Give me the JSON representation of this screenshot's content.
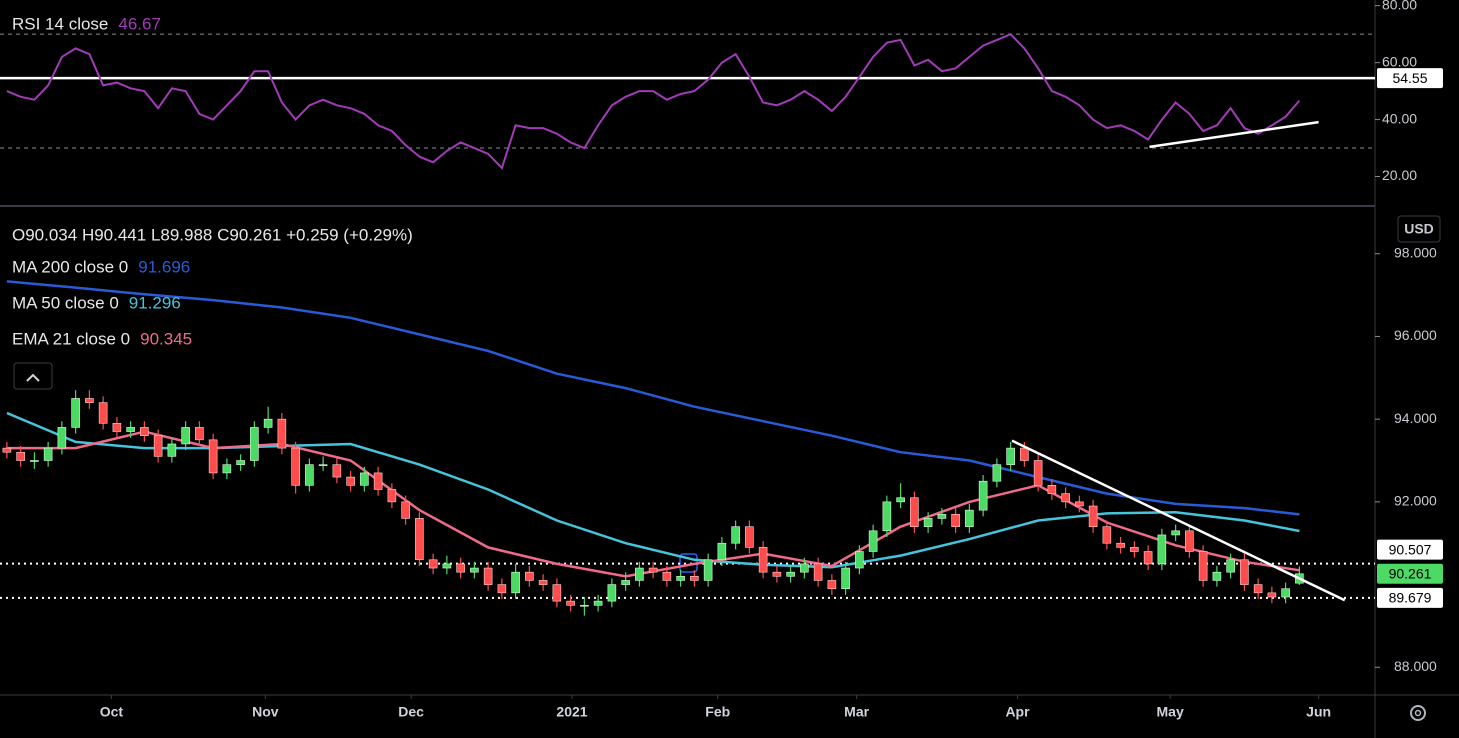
{
  "chart_data": [
    {
      "type": "line",
      "title": "RSI 14 close",
      "xlim": [
        -0.5,
        99.5
      ],
      "ylim": [
        10,
        82
      ],
      "yticks": [
        {
          "value": 20,
          "label": "20.00"
        },
        {
          "value": 40,
          "label": "40.00"
        },
        {
          "value": 60,
          "label": "60.00"
        },
        {
          "value": 80,
          "label": "80.00"
        }
      ],
      "hlines": [
        30,
        70
      ],
      "levels": [
        {
          "value": 54.55,
          "color": "#ffffff"
        }
      ],
      "trendline": {
        "x": [
          83.1,
          95.4
        ],
        "y": [
          30.4,
          39.1
        ],
        "color": "#ffffff"
      },
      "series": [
        {
          "name": "RSI 14 close",
          "color": "#a23bb8",
          "values": [
            50,
            48,
            47,
            52,
            62,
            65,
            63,
            52,
            53,
            51,
            50,
            44,
            51,
            50,
            42,
            40,
            45,
            50,
            57,
            57,
            46,
            40,
            45,
            47,
            45,
            44,
            42,
            38,
            36,
            31,
            27,
            25,
            29,
            32,
            30,
            28,
            23,
            38,
            37,
            37,
            35,
            32,
            30,
            38,
            45,
            48,
            50,
            50,
            47,
            49,
            50,
            54,
            60,
            63,
            55,
            46,
            45,
            47,
            50,
            47,
            43,
            48,
            55,
            62,
            67,
            68,
            59,
            61,
            57,
            58,
            62,
            66,
            68,
            70,
            65,
            58,
            50,
            48,
            45,
            40,
            37,
            38,
            36,
            33,
            40,
            46,
            42,
            36,
            38,
            44,
            37,
            35,
            38,
            41,
            46.67
          ]
        }
      ]
    },
    {
      "type": "candlestick",
      "ohlc_label": "O90.034 H90.441 L89.988 C90.261 +0.259 (+0.29%)",
      "currency": "USD",
      "xlim": [
        -0.5,
        99.5
      ],
      "ylim": [
        87.33,
        99.13
      ],
      "yticks": [
        {
          "value": 88,
          "label": "88.000"
        },
        {
          "value": 92,
          "label": "92.000"
        },
        {
          "value": 94,
          "label": "94.000"
        },
        {
          "value": 96,
          "label": "96.000"
        },
        {
          "value": 98,
          "label": "98.000"
        }
      ],
      "xticks": [
        {
          "value": 7.6,
          "label": "Oct"
        },
        {
          "value": 18.8,
          "label": "Nov"
        },
        {
          "value": 29.4,
          "label": "Dec"
        },
        {
          "value": 41.1,
          "label": "2021"
        },
        {
          "value": 51.7,
          "label": "Feb"
        },
        {
          "value": 61.8,
          "label": "Mar"
        },
        {
          "value": 73.5,
          "label": "Apr"
        },
        {
          "value": 84.6,
          "label": "May"
        },
        {
          "value": 95.4,
          "label": "Jun"
        }
      ],
      "up_color": "#4cd964",
      "down_color": "#ff4d4d",
      "levels": [
        {
          "value": 90.507,
          "color": "#ffffff"
        },
        {
          "value": 89.679,
          "color": "#ffffff"
        }
      ],
      "trendline": {
        "x": [
          73.1,
          97.3
        ],
        "y": [
          93.48,
          89.62
        ],
        "color": "#ffffff"
      },
      "x": [
        0,
        5,
        10,
        15,
        20,
        25,
        30,
        35,
        40,
        45,
        50,
        55,
        60,
        65,
        70,
        75,
        80,
        85,
        90,
        94
      ],
      "series": [
        {
          "name": "MA 200 close 0",
          "color": "#2a5bd7",
          "values": [
            97.33,
            97.18,
            97.02,
            96.88,
            96.7,
            96.45,
            96.05,
            95.65,
            95.1,
            94.75,
            94.3,
            93.95,
            93.6,
            93.2,
            93.0,
            92.6,
            92.2,
            91.95,
            91.85,
            91.696
          ]
        },
        {
          "name": "MA 50 close 0",
          "color": "#45c4dc",
          "values": [
            94.15,
            93.45,
            93.3,
            93.3,
            93.35,
            93.4,
            92.9,
            92.3,
            91.55,
            91.0,
            90.6,
            90.48,
            90.42,
            90.7,
            91.1,
            91.55,
            91.72,
            91.75,
            91.55,
            91.296
          ]
        },
        {
          "name": "EMA 21 close 0",
          "color": "#f06a8a",
          "values": [
            93.3,
            93.3,
            93.7,
            93.3,
            93.4,
            93.0,
            91.8,
            90.9,
            90.5,
            90.2,
            90.5,
            90.75,
            90.45,
            91.4,
            92.0,
            92.4,
            91.5,
            90.95,
            90.55,
            90.345
          ]
        }
      ],
      "candles": [
        [
          93.3,
          93.45,
          93.05,
          93.2
        ],
        [
          93.2,
          93.35,
          92.85,
          93.0
        ],
        [
          93.0,
          93.2,
          92.8,
          93.0
        ],
        [
          93.0,
          93.45,
          92.85,
          93.3
        ],
        [
          93.3,
          93.95,
          93.15,
          93.8
        ],
        [
          93.8,
          94.7,
          93.65,
          94.5
        ],
        [
          94.5,
          94.7,
          94.25,
          94.4
        ],
        [
          94.4,
          94.55,
          93.75,
          93.9
        ],
        [
          93.9,
          94.05,
          93.55,
          93.7
        ],
        [
          93.7,
          93.95,
          93.55,
          93.8
        ],
        [
          93.8,
          93.95,
          93.45,
          93.6
        ],
        [
          93.6,
          93.75,
          92.95,
          93.1
        ],
        [
          93.1,
          93.55,
          92.95,
          93.4
        ],
        [
          93.4,
          93.95,
          93.25,
          93.8
        ],
        [
          93.8,
          93.95,
          93.35,
          93.5
        ],
        [
          93.5,
          93.65,
          92.55,
          92.7
        ],
        [
          92.7,
          93.05,
          92.55,
          92.9
        ],
        [
          92.9,
          93.15,
          92.75,
          93.0
        ],
        [
          93.0,
          93.95,
          92.85,
          93.8
        ],
        [
          93.8,
          94.3,
          93.65,
          94.0
        ],
        [
          94.0,
          94.15,
          93.15,
          93.3
        ],
        [
          93.3,
          93.45,
          92.2,
          92.4
        ],
        [
          92.4,
          93.05,
          92.25,
          92.9
        ],
        [
          92.9,
          93.1,
          92.75,
          92.9
        ],
        [
          92.9,
          93.05,
          92.45,
          92.6
        ],
        [
          92.6,
          92.75,
          92.25,
          92.4
        ],
        [
          92.4,
          92.85,
          92.25,
          92.7
        ],
        [
          92.7,
          92.85,
          92.15,
          92.3
        ],
        [
          92.3,
          92.45,
          91.85,
          92.0
        ],
        [
          92.0,
          92.15,
          91.45,
          91.6
        ],
        [
          91.6,
          91.75,
          90.45,
          90.6
        ],
        [
          90.6,
          90.75,
          90.25,
          90.4
        ],
        [
          90.4,
          90.7,
          90.25,
          90.5
        ],
        [
          90.5,
          90.65,
          90.15,
          90.3
        ],
        [
          90.3,
          90.55,
          90.15,
          90.4
        ],
        [
          90.4,
          90.55,
          89.85,
          90.0
        ],
        [
          90.0,
          90.15,
          89.65,
          89.8
        ],
        [
          89.8,
          90.5,
          89.65,
          90.3
        ],
        [
          90.3,
          90.45,
          89.95,
          90.1
        ],
        [
          90.1,
          90.25,
          89.85,
          90.0
        ],
        [
          90.0,
          90.15,
          89.45,
          89.6
        ],
        [
          89.6,
          89.75,
          89.35,
          89.5
        ],
        [
          89.5,
          89.7,
          89.25,
          89.5
        ],
        [
          89.5,
          89.75,
          89.35,
          89.6
        ],
        [
          89.6,
          90.15,
          89.45,
          90.0
        ],
        [
          90.0,
          90.3,
          89.85,
          90.1
        ],
        [
          90.1,
          90.55,
          89.95,
          90.4
        ],
        [
          90.4,
          90.55,
          90.15,
          90.3
        ],
        [
          90.3,
          90.45,
          89.95,
          90.1
        ],
        [
          90.1,
          90.35,
          89.95,
          90.2
        ],
        [
          90.2,
          90.35,
          89.95,
          90.1
        ],
        [
          90.1,
          90.75,
          89.95,
          90.6
        ],
        [
          90.6,
          91.15,
          90.45,
          91.0
        ],
        [
          91.0,
          91.55,
          90.85,
          91.4
        ],
        [
          91.4,
          91.55,
          90.75,
          90.9
        ],
        [
          90.9,
          91.05,
          90.15,
          90.3
        ],
        [
          90.3,
          90.45,
          90.05,
          90.2
        ],
        [
          90.2,
          90.45,
          90.05,
          90.3
        ],
        [
          90.3,
          90.65,
          90.15,
          90.5
        ],
        [
          90.5,
          90.65,
          89.95,
          90.1
        ],
        [
          90.1,
          90.25,
          89.75,
          89.9
        ],
        [
          89.9,
          90.55,
          89.75,
          90.4
        ],
        [
          90.4,
          90.95,
          90.25,
          90.8
        ],
        [
          90.8,
          91.45,
          90.65,
          91.3
        ],
        [
          91.3,
          92.15,
          91.15,
          92.0
        ],
        [
          92.0,
          92.45,
          91.85,
          92.1
        ],
        [
          92.1,
          92.25,
          91.25,
          91.4
        ],
        [
          91.4,
          91.75,
          91.25,
          91.6
        ],
        [
          91.6,
          91.85,
          91.45,
          91.7
        ],
        [
          91.7,
          91.85,
          91.25,
          91.4
        ],
        [
          91.4,
          91.95,
          91.25,
          91.8
        ],
        [
          91.8,
          92.65,
          91.65,
          92.5
        ],
        [
          92.5,
          93.05,
          92.35,
          92.9
        ],
        [
          92.9,
          93.45,
          92.75,
          93.3
        ],
        [
          93.3,
          93.45,
          92.85,
          93.0
        ],
        [
          93.0,
          93.15,
          92.25,
          92.4
        ],
        [
          92.4,
          92.55,
          92.05,
          92.2
        ],
        [
          92.2,
          92.35,
          91.85,
          92.0
        ],
        [
          92.0,
          92.15,
          91.75,
          91.9
        ],
        [
          91.9,
          92.05,
          91.25,
          91.4
        ],
        [
          91.4,
          91.55,
          90.85,
          91.0
        ],
        [
          91.0,
          91.15,
          90.75,
          90.9
        ],
        [
          90.9,
          91.05,
          90.65,
          90.8
        ],
        [
          90.8,
          90.95,
          90.35,
          90.5
        ],
        [
          90.5,
          91.35,
          90.35,
          91.2
        ],
        [
          91.2,
          91.45,
          91.05,
          91.3
        ],
        [
          91.3,
          91.45,
          90.65,
          90.8
        ],
        [
          90.8,
          90.95,
          89.95,
          90.1
        ],
        [
          90.1,
          90.45,
          89.95,
          90.3
        ],
        [
          90.3,
          90.75,
          90.15,
          90.6
        ],
        [
          90.6,
          90.75,
          89.85,
          90.0
        ],
        [
          90.0,
          90.15,
          89.65,
          89.8
        ],
        [
          89.8,
          89.95,
          89.55,
          89.7
        ],
        [
          89.7,
          90.05,
          89.55,
          89.9
        ],
        [
          90.034,
          90.441,
          89.988,
          90.261
        ]
      ]
    }
  ]
}
